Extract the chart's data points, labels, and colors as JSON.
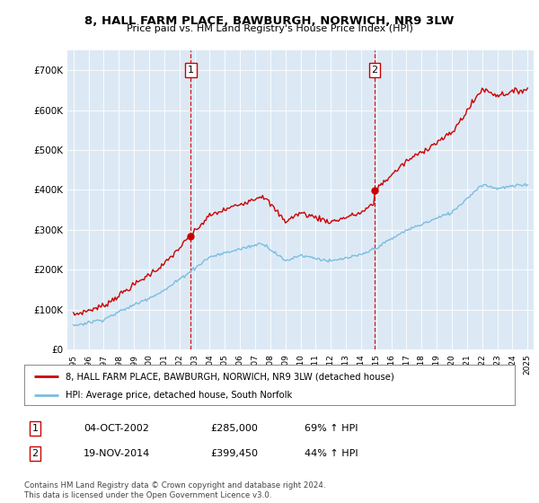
{
  "title": "8, HALL FARM PLACE, BAWBURGH, NORWICH, NR9 3LW",
  "subtitle": "Price paid vs. HM Land Registry's House Price Index (HPI)",
  "bg_color": "#dce9f5",
  "sale1_x": 2002.75,
  "sale1_y": 285000,
  "sale2_x": 2014.9,
  "sale2_y": 399450,
  "legend_entry1": "8, HALL FARM PLACE, BAWBURGH, NORWICH, NR9 3LW (detached house)",
  "legend_entry2": "HPI: Average price, detached house, South Norfolk",
  "table_row1": [
    "1",
    "04-OCT-2002",
    "£285,000",
    "69% ↑ HPI"
  ],
  "table_row2": [
    "2",
    "19-NOV-2014",
    "£399,450",
    "44% ↑ HPI"
  ],
  "footer": "Contains HM Land Registry data © Crown copyright and database right 2024.\nThis data is licensed under the Open Government Licence v3.0.",
  "ylim": [
    0,
    750000
  ],
  "yticks": [
    0,
    100000,
    200000,
    300000,
    400000,
    500000,
    600000,
    700000
  ],
  "hpi_color": "#7bbde0",
  "price_color": "#cc0000",
  "dashed_color": "#cc0000",
  "xlim_left": 1994.6,
  "xlim_right": 2025.4
}
